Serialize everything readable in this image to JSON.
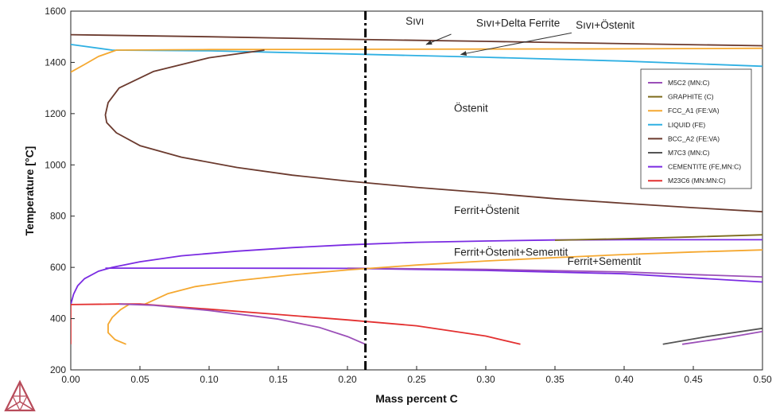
{
  "chart_data": {
    "type": "line",
    "title": "",
    "xlabel": "Mass percent C",
    "ylabel": "Temperature [°C]",
    "xlim": [
      0,
      0.5
    ],
    "ylim": [
      200,
      1600
    ],
    "xticks": [
      "0.00",
      "0.05",
      "0.10",
      "0.15",
      "0.20",
      "0.25",
      "0.30",
      "0.35",
      "0.40",
      "0.45",
      "0.50"
    ],
    "yticks": [
      "200",
      "400",
      "600",
      "800",
      "1000",
      "1200",
      "1400",
      "1600"
    ],
    "grid": false,
    "legend_position": "right",
    "vertical_marker_x": 0.213,
    "legend": [
      {
        "label": "M5C2  (MN:C)",
        "color": "#9b4fb8"
      },
      {
        "label": "GRAPHITE  (C)",
        "color": "#7d6b1c"
      },
      {
        "label": "FCC_A1  (FE:VA)",
        "color": "#f5a830"
      },
      {
        "label": "LIQUID  (FE)",
        "color": "#2fb0e3"
      },
      {
        "label": "BCC_A2  (FE:VA)",
        "color": "#6b3a2e"
      },
      {
        "label": "M7C3  (MN:C)",
        "color": "#555555"
      },
      {
        "label": "CEMENTITE  (FE,MN:C)",
        "color": "#7a2be2"
      },
      {
        "label": "M23C6  (MN:MN:C)",
        "color": "#e33030"
      }
    ],
    "annotations": [
      {
        "text": "Sıvı",
        "x": 0.242,
        "y": 1548
      },
      {
        "text": "Sıvı+Delta Ferrite",
        "x": 0.293,
        "y": 1540
      },
      {
        "text": "Sıvı+Östenit",
        "x": 0.365,
        "y": 1532
      },
      {
        "text": "Östenit",
        "x": 0.277,
        "y": 1207
      },
      {
        "text": "Ferrit+Östenit",
        "x": 0.277,
        "y": 808
      },
      {
        "text": "Ferrit+Östenit+Sementit",
        "x": 0.277,
        "y": 645
      },
      {
        "text": "Ferrit+Sementit",
        "x": 0.359,
        "y": 610
      }
    ],
    "series": [
      {
        "color": "#6b3a2e",
        "points": [
          [
            0,
            1508
          ],
          [
            0.1,
            1500
          ],
          [
            0.2,
            1490
          ],
          [
            0.3,
            1482
          ],
          [
            0.4,
            1473
          ],
          [
            0.5,
            1465
          ]
        ]
      },
      {
        "color": "#2fb0e3",
        "points": [
          [
            0,
            1470
          ],
          [
            0.03,
            1448
          ],
          [
            0.1,
            1445
          ],
          [
            0.2,
            1433
          ],
          [
            0.3,
            1420
          ],
          [
            0.4,
            1405
          ],
          [
            0.5,
            1385
          ]
        ]
      },
      {
        "color": "#f5a830",
        "points": [
          [
            0,
            1362
          ],
          [
            0.01,
            1392
          ],
          [
            0.02,
            1423
          ],
          [
            0.033,
            1448
          ],
          [
            0.1,
            1450
          ],
          [
            0.2,
            1451
          ],
          [
            0.3,
            1452
          ],
          [
            0.4,
            1453
          ],
          [
            0.5,
            1455
          ]
        ]
      },
      {
        "color": "#6b3a2e",
        "points": [
          [
            0.14,
            1448
          ],
          [
            0.1,
            1418
          ],
          [
            0.06,
            1365
          ],
          [
            0.035,
            1300
          ],
          [
            0.027,
            1243
          ],
          [
            0.025,
            1195
          ],
          [
            0.026,
            1165
          ],
          [
            0.033,
            1125
          ],
          [
            0.05,
            1075
          ],
          [
            0.08,
            1030
          ],
          [
            0.12,
            990
          ],
          [
            0.16,
            960
          ],
          [
            0.2,
            937
          ],
          [
            0.25,
            912
          ],
          [
            0.3,
            891
          ],
          [
            0.35,
            868
          ],
          [
            0.4,
            850
          ],
          [
            0.45,
            833
          ],
          [
            0.5,
            817
          ]
        ]
      },
      {
        "color": "#7a2be2",
        "points": [
          [
            0,
            455
          ],
          [
            0.002,
            495
          ],
          [
            0.005,
            528
          ],
          [
            0.01,
            556
          ],
          [
            0.02,
            585
          ],
          [
            0.03,
            600
          ],
          [
            0.05,
            622
          ],
          [
            0.08,
            645
          ],
          [
            0.12,
            663
          ],
          [
            0.16,
            677
          ],
          [
            0.2,
            688
          ],
          [
            0.25,
            698
          ],
          [
            0.3,
            703
          ],
          [
            0.35,
            707
          ],
          [
            0.4,
            708
          ],
          [
            0.45,
            708
          ],
          [
            0.5,
            708
          ]
        ]
      },
      {
        "color": "#7d6b1c",
        "points": [
          [
            0.35,
            706
          ],
          [
            0.4,
            712
          ],
          [
            0.45,
            719
          ],
          [
            0.5,
            727
          ]
        ]
      },
      {
        "color": "#7a2be2",
        "points": [
          [
            0.025,
            597
          ],
          [
            0.1,
            597
          ],
          [
            0.2,
            596
          ],
          [
            0.3,
            588
          ],
          [
            0.4,
            575
          ],
          [
            0.45,
            559
          ],
          [
            0.5,
            543
          ]
        ]
      },
      {
        "color": "#9b4fb8",
        "points": [
          [
            0.2,
            597
          ],
          [
            0.3,
            592
          ],
          [
            0.4,
            582
          ],
          [
            0.45,
            572
          ],
          [
            0.5,
            563
          ]
        ]
      },
      {
        "color": "#f5a830",
        "points": [
          [
            0.053,
            455
          ],
          [
            0.07,
            497
          ],
          [
            0.09,
            525
          ],
          [
            0.12,
            548
          ],
          [
            0.16,
            571
          ],
          [
            0.2,
            590
          ],
          [
            0.25,
            609
          ],
          [
            0.3,
            625
          ],
          [
            0.35,
            638
          ],
          [
            0.4,
            650
          ],
          [
            0.45,
            660
          ],
          [
            0.5,
            668
          ]
        ]
      },
      {
        "color": "#f5a830",
        "points": [
          [
            0.04,
            300
          ],
          [
            0.032,
            318
          ],
          [
            0.027,
            345
          ],
          [
            0.027,
            378
          ],
          [
            0.03,
            405
          ],
          [
            0.036,
            435
          ],
          [
            0.042,
            455
          ]
        ]
      },
      {
        "color": "#e33030",
        "points": [
          [
            0,
            300
          ],
          [
            0,
            455
          ],
          [
            0.035,
            457
          ],
          [
            0.05,
            457
          ],
          [
            0.1,
            437
          ],
          [
            0.15,
            416
          ],
          [
            0.2,
            395
          ],
          [
            0.25,
            372
          ],
          [
            0.3,
            332
          ],
          [
            0.325,
            300
          ]
        ]
      },
      {
        "color": "#9b4fb8",
        "points": [
          [
            0.035,
            457
          ],
          [
            0.06,
            452
          ],
          [
            0.1,
            432
          ],
          [
            0.15,
            398
          ],
          [
            0.18,
            365
          ],
          [
            0.2,
            330
          ],
          [
            0.213,
            300
          ]
        ]
      },
      {
        "color": "#555555",
        "points": [
          [
            0.428,
            300
          ],
          [
            0.46,
            330
          ],
          [
            0.5,
            362
          ]
        ]
      },
      {
        "color": "#9b4fb8",
        "points": [
          [
            0.442,
            300
          ],
          [
            0.47,
            322
          ],
          [
            0.5,
            350
          ]
        ]
      }
    ]
  }
}
